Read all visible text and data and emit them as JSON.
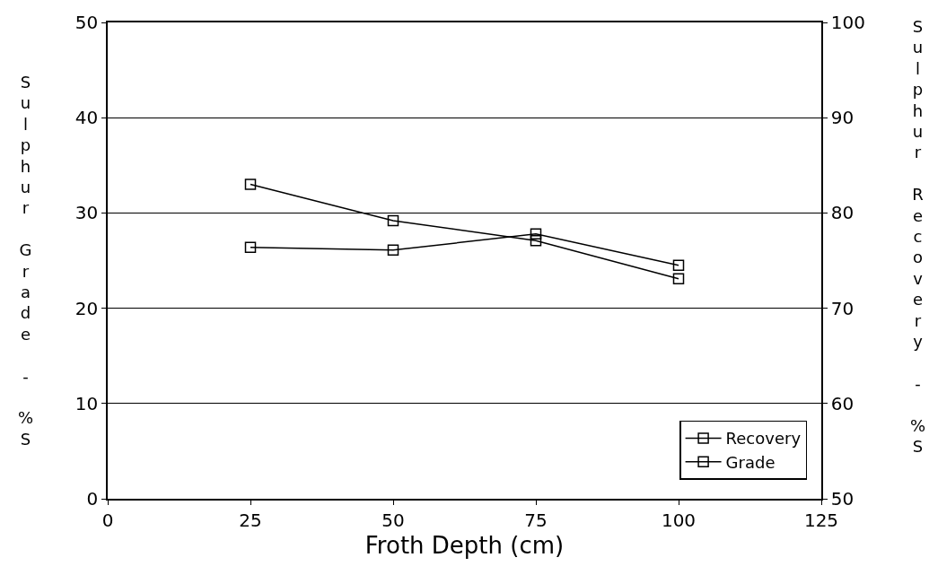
{
  "chart_data": {
    "type": "line",
    "xlabel": "Froth Depth (cm)",
    "ylabel": "Sulphur Grade - %S",
    "y2label": "Sulphur Recovery - %S",
    "x": [
      25,
      50,
      75,
      100
    ],
    "series": [
      {
        "name": "Recovery",
        "color": "#000000",
        "values": [
          83.0,
          79.2,
          77.1,
          73.1
        ],
        "axis": "y2",
        "marker": "square"
      },
      {
        "name": "Grade",
        "color": "#000000",
        "values": [
          26.4,
          26.1,
          27.8,
          24.5
        ],
        "marker": "square"
      }
    ],
    "xlim": [
      0,
      125
    ],
    "xticks": [
      0,
      25,
      50,
      75,
      100,
      125
    ],
    "ylim": [
      0,
      50
    ],
    "yticks": [
      0,
      10,
      20,
      30,
      40,
      50
    ],
    "y2lim": [
      50,
      100
    ],
    "y2ticks": [
      50,
      60,
      70,
      80,
      90,
      100
    ],
    "grid": "y",
    "legend": "bottom right",
    "line_style": "solid"
  }
}
